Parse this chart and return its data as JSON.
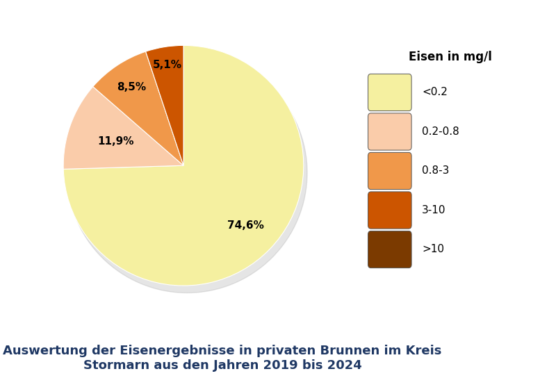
{
  "slices": [
    74.6,
    11.9,
    8.5,
    5.1
  ],
  "labels": [
    "74,6%",
    "11,9%",
    "8,5%",
    "5,1%"
  ],
  "colors": [
    "#F5F0A0",
    "#FACCAA",
    "#F0984A",
    "#CC5500"
  ],
  "legend_colors": [
    "#F5F0A0",
    "#FACCAA",
    "#F0984A",
    "#CC5500",
    "#7B3A00"
  ],
  "legend_labels": [
    "<0.2",
    "0.2-0.8",
    "0.8-3",
    "3-10",
    ">10"
  ],
  "legend_title": "Eisen in mg/l",
  "title": "Auswertung der Eisenergebnisse in privaten Brunnen im Kreis\nStormarn aus den Jahren 2019 bis 2024",
  "title_color": "#1F3864",
  "title_fontsize": 13,
  "label_fontsize": 11,
  "background_color": "#FFFFFF",
  "startangle": 90
}
